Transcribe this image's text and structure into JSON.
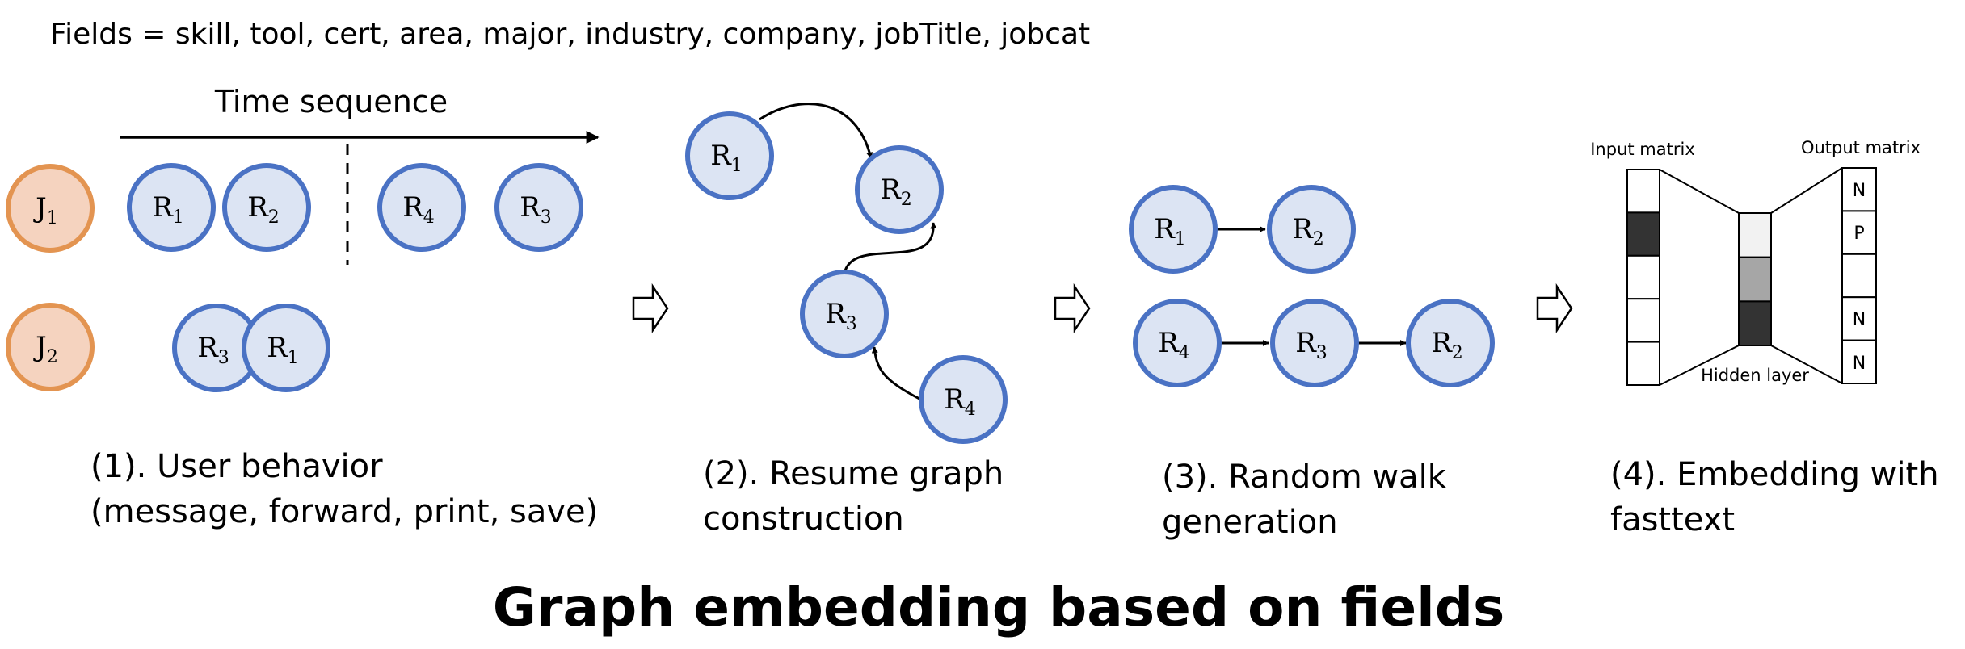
{
  "fields_text": "Fields = skill, tool, cert, area, major, industry, company, jobTitle, jobcat",
  "title": "Graph embedding based on fields",
  "colors": {
    "resume_fill": "#dce4f3",
    "resume_stroke": "#4a72c4",
    "job_fill": "#f5d3bf",
    "job_stroke": "#e39451",
    "dark_cell": "#333333",
    "mid_cell": "#a6a6a6",
    "light_cell": "#f2f2f2",
    "line": "#000000"
  },
  "icons": {
    "step_arrow": "hollow-right-arrow-icon"
  },
  "section1": {
    "time_label": "Time sequence",
    "caption_line1": "(1). User behavior",
    "caption_line2": "(message, forward, print, save)",
    "jobs": [
      {
        "base": "J",
        "sub": "1"
      },
      {
        "base": "J",
        "sub": "2"
      }
    ],
    "row1_resumes": [
      {
        "base": "R",
        "sub": "1"
      },
      {
        "base": "R",
        "sub": "2"
      },
      {
        "base": "R",
        "sub": "4"
      },
      {
        "base": "R",
        "sub": "3"
      }
    ],
    "row2_resumes": [
      {
        "base": "R",
        "sub": "3"
      },
      {
        "base": "R",
        "sub": "1"
      }
    ]
  },
  "section2": {
    "caption_line1": "(2). Resume graph",
    "caption_line2": "construction",
    "nodes": [
      {
        "base": "R",
        "sub": "1"
      },
      {
        "base": "R",
        "sub": "2"
      },
      {
        "base": "R",
        "sub": "3"
      },
      {
        "base": "R",
        "sub": "4"
      }
    ],
    "edges": [
      [
        "R1",
        "R2"
      ],
      [
        "R3",
        "R2"
      ],
      [
        "R4",
        "R3"
      ]
    ]
  },
  "section3": {
    "caption_line1": "(3). Random walk",
    "caption_line2": "generation",
    "walk1": [
      {
        "base": "R",
        "sub": "1"
      },
      {
        "base": "R",
        "sub": "2"
      }
    ],
    "walk2": [
      {
        "base": "R",
        "sub": "4"
      },
      {
        "base": "R",
        "sub": "3"
      },
      {
        "base": "R",
        "sub": "2"
      }
    ]
  },
  "section4": {
    "caption_line1": "(4). Embedding with",
    "caption_line2": "fasttext",
    "input_label": "Input matrix",
    "output_label": "Output matrix",
    "hidden_label": "Hidden layer",
    "output_cells": [
      "N",
      "P",
      "",
      "N",
      "N"
    ]
  }
}
